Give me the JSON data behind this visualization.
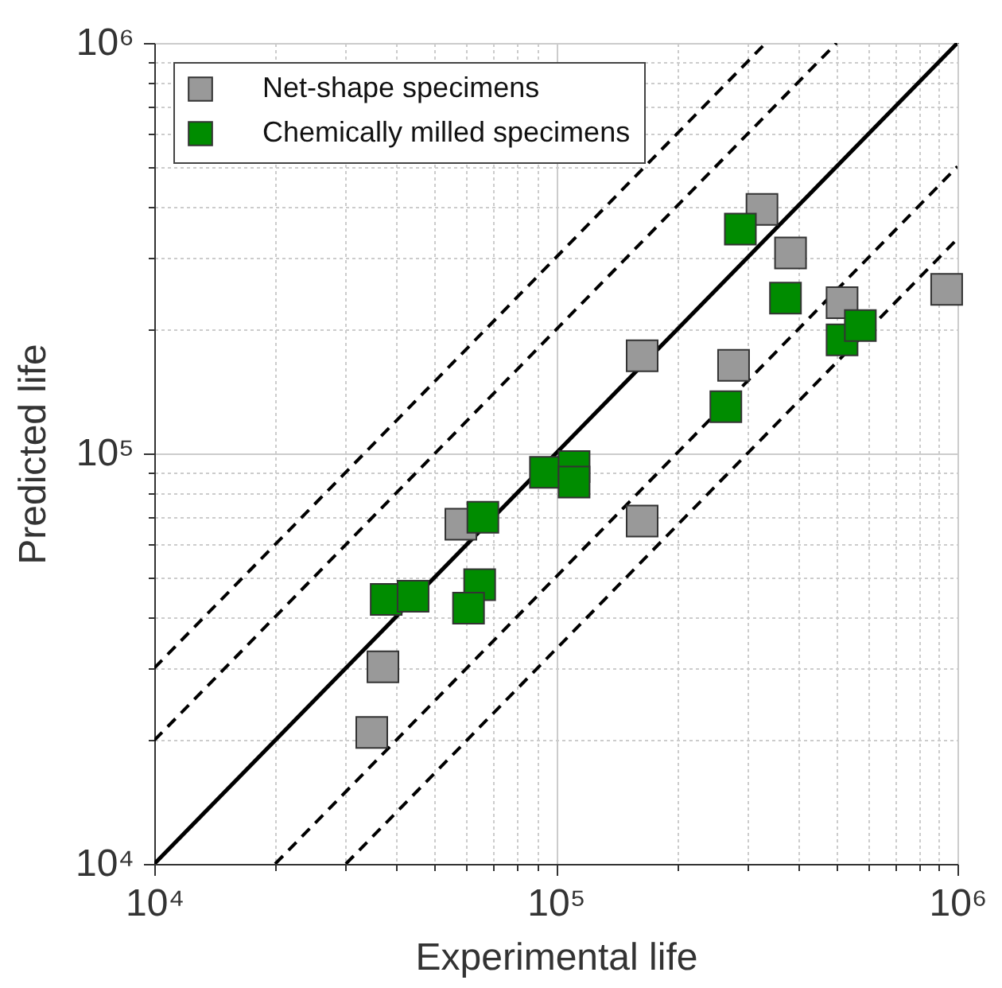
{
  "chart_data": {
    "type": "scatter",
    "xlabel": "Experimental life",
    "ylabel": "Predicted life",
    "log": "xy",
    "grid": true,
    "legend": "top left",
    "marker": "square",
    "xlim": [
      10000,
      1000000
    ],
    "ylim": [
      10000,
      1000000
    ],
    "xticks": [
      {
        "value": 10000,
        "label": "10⁴"
      },
      {
        "value": 20000,
        "label": null
      },
      {
        "value": 30000,
        "label": null
      },
      {
        "value": 40000,
        "label": null
      },
      {
        "value": 50000,
        "label": null
      },
      {
        "value": 60000,
        "label": null
      },
      {
        "value": 70000,
        "label": null
      },
      {
        "value": 80000,
        "label": null
      },
      {
        "value": 90000,
        "label": null
      },
      {
        "value": 100000,
        "label": "10⁵"
      },
      {
        "value": 200000,
        "label": null
      },
      {
        "value": 300000,
        "label": null
      },
      {
        "value": 400000,
        "label": null
      },
      {
        "value": 500000,
        "label": null
      },
      {
        "value": 600000,
        "label": null
      },
      {
        "value": 700000,
        "label": null
      },
      {
        "value": 800000,
        "label": null
      },
      {
        "value": 900000,
        "label": null
      },
      {
        "value": 1000000,
        "label": "10⁶"
      }
    ],
    "yticks": [
      {
        "value": 10000,
        "label": "10⁴"
      },
      {
        "value": 20000,
        "label": null
      },
      {
        "value": 30000,
        "label": null
      },
      {
        "value": 40000,
        "label": null
      },
      {
        "value": 50000,
        "label": null
      },
      {
        "value": 60000,
        "label": null
      },
      {
        "value": 70000,
        "label": null
      },
      {
        "value": 80000,
        "label": null
      },
      {
        "value": 90000,
        "label": null
      },
      {
        "value": 100000,
        "label": "10⁵"
      },
      {
        "value": 200000,
        "label": null
      },
      {
        "value": 300000,
        "label": null
      },
      {
        "value": 400000,
        "label": null
      },
      {
        "value": 500000,
        "label": null
      },
      {
        "value": 600000,
        "label": null
      },
      {
        "value": 700000,
        "label": null
      },
      {
        "value": 800000,
        "label": null
      },
      {
        "value": 900000,
        "label": null
      },
      {
        "value": 1000000,
        "label": "10⁶"
      }
    ],
    "series": [
      {
        "type": "line",
        "color": "#000000",
        "line_style": "solid",
        "marker": "none",
        "x": [
          10000,
          1000000
        ],
        "values": [
          10000,
          1000000
        ]
      },
      {
        "type": "line",
        "color": "#000000",
        "line_style": "dashed",
        "marker": "none",
        "x": [
          10000,
          333333
        ],
        "values": [
          30000,
          1000000
        ]
      },
      {
        "type": "line",
        "color": "#000000",
        "line_style": "dashed",
        "marker": "none",
        "x": [
          10000,
          500000
        ],
        "values": [
          20000,
          1000000
        ]
      },
      {
        "type": "line",
        "color": "#000000",
        "line_style": "dashed",
        "marker": "none",
        "x": [
          20000,
          1000000
        ],
        "values": [
          10000,
          500000
        ]
      },
      {
        "type": "line",
        "color": "#000000",
        "line_style": "dashed",
        "marker": "none",
        "x": [
          30000,
          1000000
        ],
        "values": [
          10000,
          333333
        ]
      },
      {
        "name": "Net-shape specimens",
        "color": "#999999",
        "x": [
          326000,
          384000,
          516000,
          940000,
          164000,
          277000,
          164000,
          58000,
          37100,
          34800
        ],
        "values": [
          393000,
          308000,
          233000,
          251000,
          173000,
          164000,
          68400,
          67200,
          30200,
          20900
        ]
      },
      {
        "name": "Chemically milled specimens",
        "color": "#008c00",
        "x": [
          288000,
          373000,
          516000,
          573000,
          265000,
          94200,
          111000,
          111000,
          65800,
          37800,
          44100,
          64600,
          60600
        ],
        "values": [
          352000,
          239000,
          189000,
          205000,
          130000,
          89900,
          92900,
          85200,
          69900,
          44100,
          44900,
          47900,
          42000
        ]
      }
    ]
  }
}
